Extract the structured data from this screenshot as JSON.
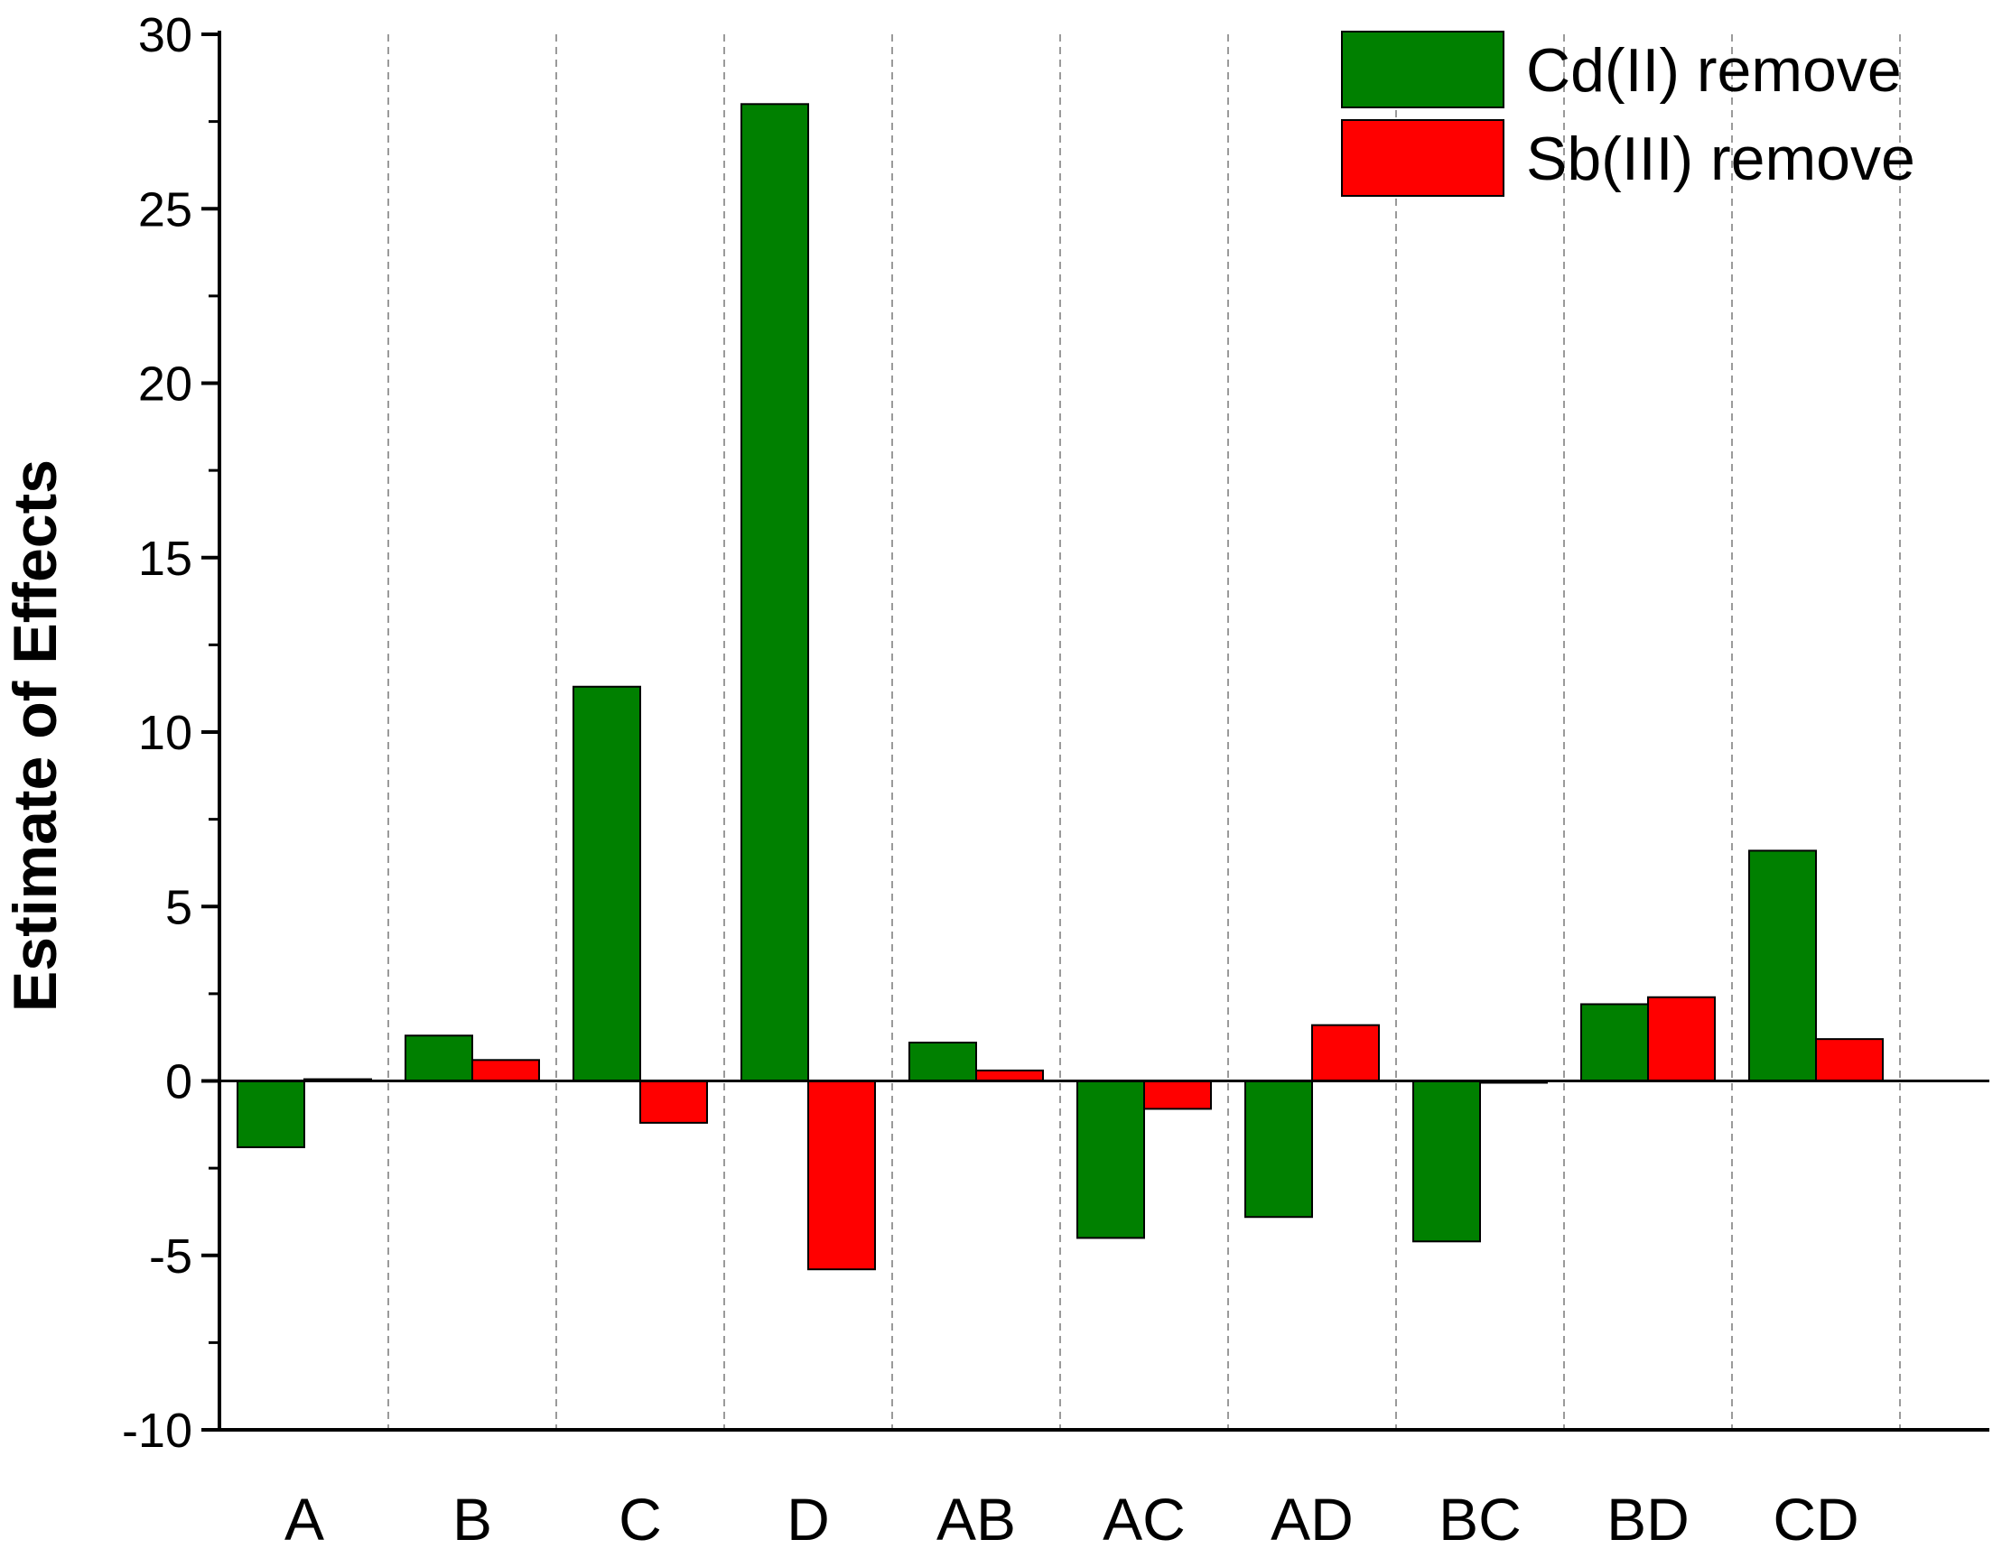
{
  "chart_data": {
    "type": "bar",
    "ylabel": "Estimate of Effects",
    "xlabel": "",
    "ylim": [
      -10,
      30
    ],
    "yticks": [
      -10,
      -5,
      0,
      5,
      10,
      15,
      20,
      25,
      30
    ],
    "categories": [
      "A",
      "B",
      "C",
      "D",
      "AB",
      "AC",
      "AD",
      "BC",
      "BD",
      "CD"
    ],
    "series": [
      {
        "name": "Cd(II) remove",
        "color": "#008000",
        "values": [
          -1.9,
          1.3,
          11.3,
          28.0,
          1.1,
          -4.5,
          -3.9,
          -4.6,
          2.2,
          6.6
        ]
      },
      {
        "name": "Sb(III) remove",
        "color": "#ff0000",
        "values": [
          0.05,
          0.6,
          -1.2,
          -5.4,
          0.3,
          -0.8,
          1.6,
          -0.05,
          2.4,
          1.2
        ]
      }
    ],
    "grid": "vertical dashed between categories",
    "legend": "top-right"
  }
}
